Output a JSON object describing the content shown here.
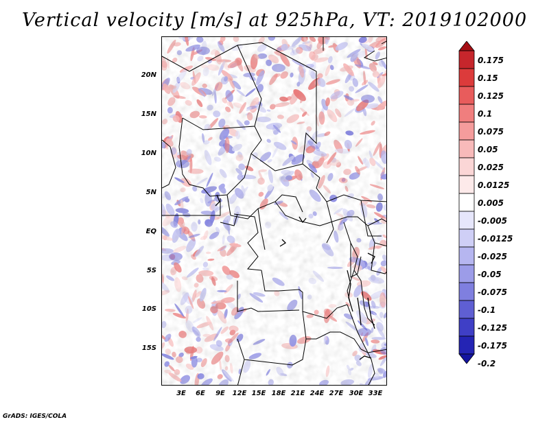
{
  "title": "Vertical velocity [m/s] at 925hPa, VT: 2019102000",
  "footer": "GrADS: IGES/COLA",
  "map": {
    "lat_labels": [
      "20N",
      "15N",
      "10N",
      "5N",
      "EQ",
      "5S",
      "10S",
      "15S"
    ],
    "lon_labels": [
      "3E",
      "6E",
      "9E",
      "12E",
      "15E",
      "18E",
      "21E",
      "24E",
      "27E",
      "30E",
      "33E"
    ]
  },
  "colorbar": {
    "labels": [
      "0.175",
      "0.15",
      "0.125",
      "0.1",
      "0.075",
      "0.05",
      "0.025",
      "0.0125",
      "0.005",
      "-0.005",
      "-0.0125",
      "-0.025",
      "-0.05",
      "-0.075",
      "-0.1",
      "-0.125",
      "-0.175",
      "-0.2"
    ],
    "colors": [
      "#a50f15",
      "#c6262c",
      "#dc3b3b",
      "#e85c5c",
      "#f07e7e",
      "#f59c9c",
      "#f8baba",
      "#fbd6d6",
      "#fdeaea",
      "#ffffff",
      "#e6e6fb",
      "#cfcff6",
      "#b6b6f0",
      "#9c9ce8",
      "#7f7fdf",
      "#5f5fd3",
      "#3f3fc6",
      "#2424b4",
      "#1414a0"
    ]
  }
}
